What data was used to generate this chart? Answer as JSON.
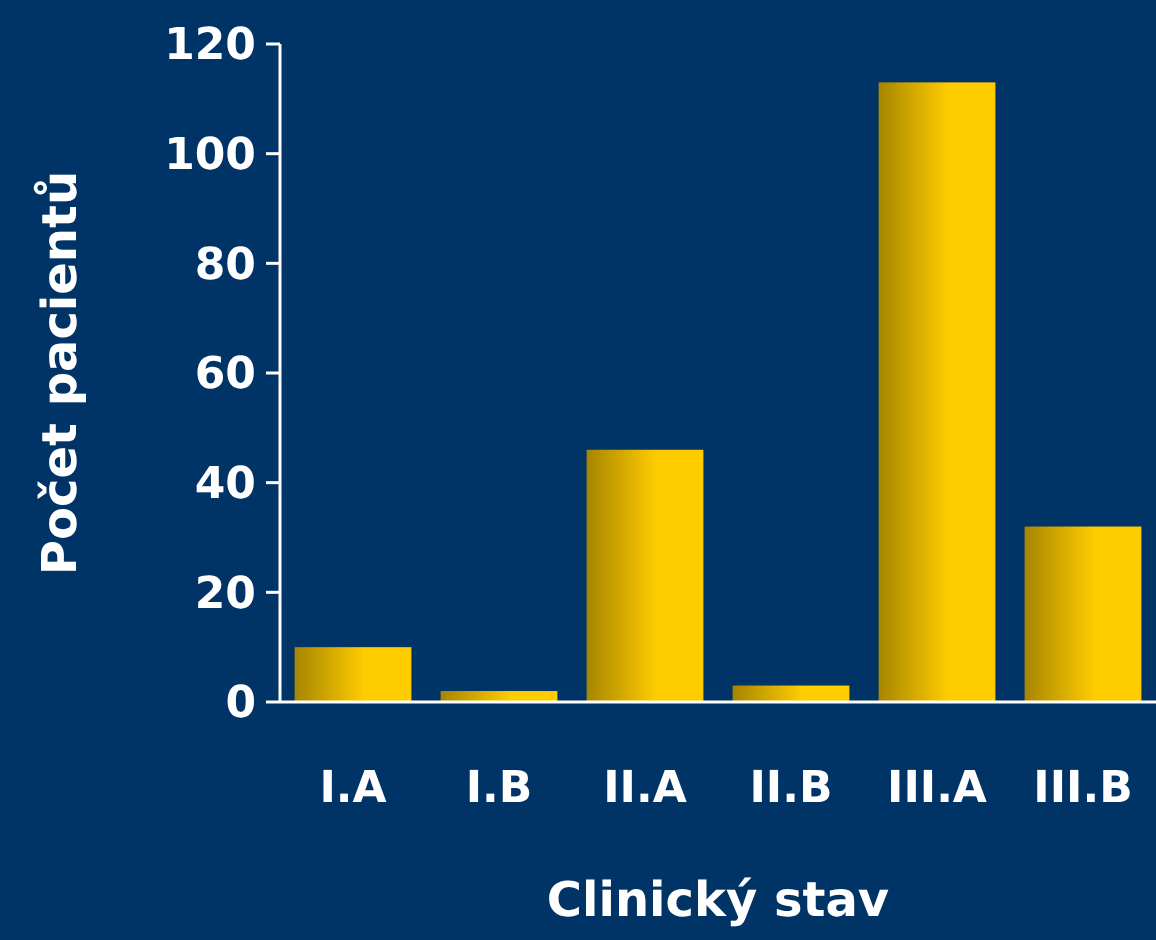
{
  "chart_data": {
    "type": "bar",
    "xlabel": "Clinický stav",
    "ylabel": "Počet pacientů",
    "categories": [
      "I.A",
      "I.B",
      "II.A",
      "II.B",
      "III.A",
      "III.B"
    ],
    "values": [
      10,
      2,
      46,
      3,
      113,
      32
    ],
    "color": "#ffcc00",
    "ylim": [
      0,
      120
    ],
    "yticks": [
      0,
      20,
      40,
      60,
      80,
      100,
      120
    ],
    "grid": false
  }
}
